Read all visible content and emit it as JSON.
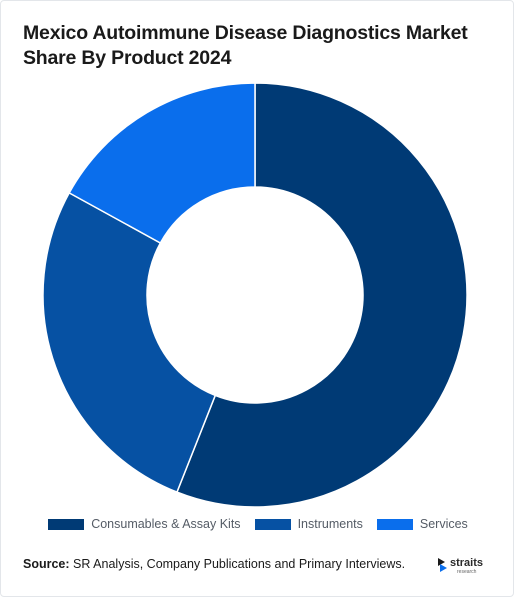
{
  "title": "Mexico Autoimmune Disease Diagnostics Market Share By Product 2024",
  "source_label": "Source:",
  "source_text": "SR Analysis, Company Publications and Primary Interviews.",
  "logo": {
    "word": "straits",
    "sub": "research"
  },
  "colors": {
    "series": [
      "#003A75",
      "#0651A3",
      "#0A6EEC"
    ]
  },
  "chart_data": {
    "type": "pie",
    "subtype": "donut",
    "title": "Mexico Autoimmune Disease Diagnostics Market Share By Product 2024",
    "categories": [
      "Consumables & Assay Kits",
      "Instruments",
      "Services"
    ],
    "values": [
      56,
      27,
      17
    ],
    "unit": "%",
    "legend_position": "bottom"
  }
}
